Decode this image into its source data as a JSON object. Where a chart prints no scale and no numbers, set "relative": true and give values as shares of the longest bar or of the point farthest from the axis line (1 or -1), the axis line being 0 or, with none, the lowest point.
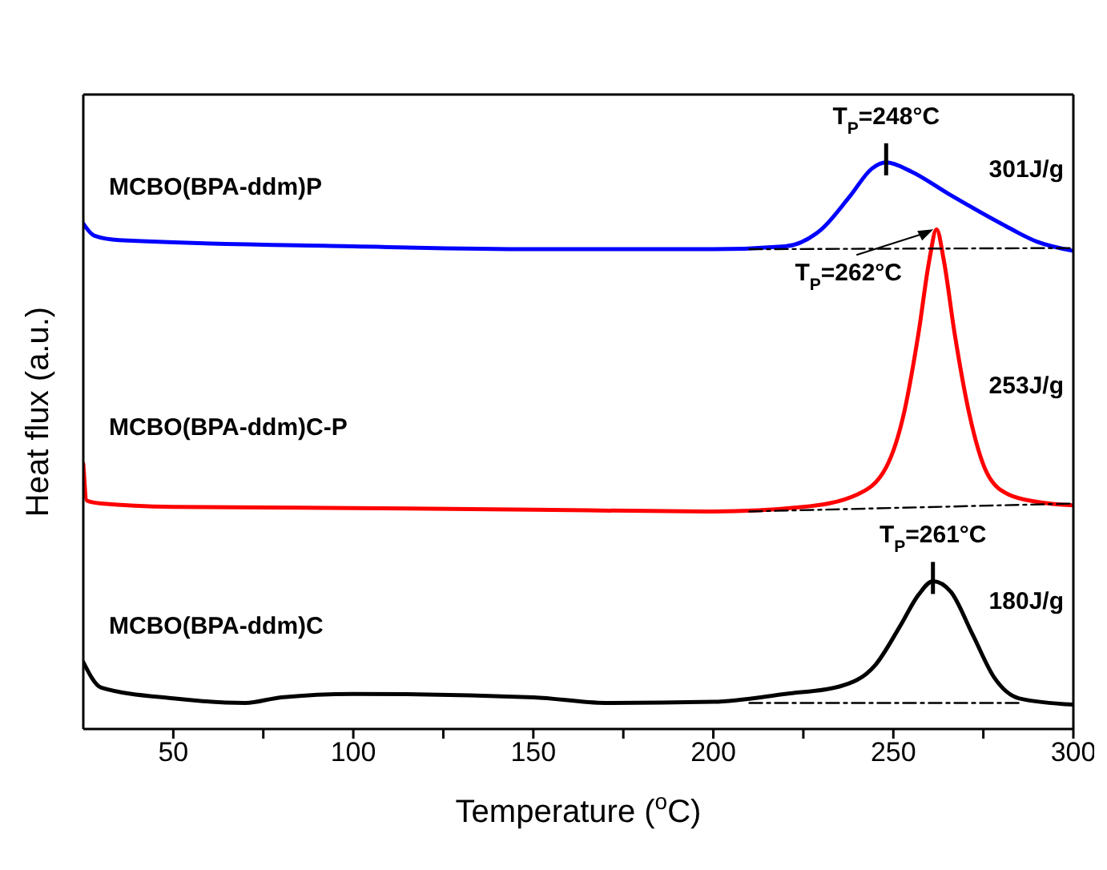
{
  "chart_data": {
    "type": "line",
    "relative": true,
    "xlabel": "Temperature ($^{o}$C)",
    "ylabel": "Heat flux (a.u.)",
    "xlim": [
      25,
      300
    ],
    "xticks": [
      50,
      {
        "value": 75,
        "label": null
      },
      100,
      {
        "value": 125,
        "label": null
      },
      150,
      {
        "value": 175,
        "label": null
      },
      200,
      {
        "value": 225,
        "label": null
      },
      250,
      {
        "value": 275,
        "label": null
      },
      300
    ],
    "marker": "none",
    "line_style": "solid",
    "series": [
      {
        "name": "MCBO(BPA-ddm)P",
        "color": "#0000ff",
        "x": [
          25,
          28,
          35,
          100,
          150,
          200,
          220,
          230,
          238,
          244,
          248,
          255,
          265,
          280,
          290,
          300
        ],
        "values": [
          0.892,
          0.871,
          0.863,
          0.852,
          0.847,
          0.847,
          0.852,
          0.882,
          0.941,
          0.989,
          1,
          0.984,
          0.946,
          0.892,
          0.86,
          0.844
        ]
      },
      {
        "name": "MCBO(BPA-ddm)C-P",
        "color": "#ff0000",
        "x": [
          25,
          26,
          30,
          50,
          100,
          150,
          200,
          225,
          240,
          248,
          253,
          257,
          260,
          262,
          264,
          267,
          271,
          276,
          282,
          290,
          300
        ],
        "values": [
          0.468,
          0.403,
          0.398,
          0.392,
          0.39,
          0.387,
          0.384,
          0.392,
          0.414,
          0.462,
          0.559,
          0.699,
          0.828,
          0.882,
          0.828,
          0.699,
          0.559,
          0.452,
          0.414,
          0.401,
          0.395
        ]
      },
      {
        "name": "MCBO(BPA-ddm)C",
        "color": "#000000",
        "x": [
          25,
          30,
          50,
          70,
          80,
          100,
          150,
          170,
          200,
          220,
          235,
          245,
          252,
          257,
          261,
          266,
          272,
          278,
          285,
          300
        ],
        "values": [
          0.118,
          0.073,
          0.054,
          0.046,
          0.056,
          0.062,
          0.056,
          0.046,
          0.048,
          0.062,
          0.075,
          0.113,
          0.183,
          0.237,
          0.261,
          0.242,
          0.167,
          0.091,
          0.054,
          0.043
        ]
      },
      {
        "type": "line",
        "line_style": "dashed",
        "color": "#000000",
        "x": [
          210,
          300
        ],
        "values": [
          0.847,
          0.849
        ]
      },
      {
        "type": "line",
        "line_style": "dashed",
        "color": "#000000",
        "x": [
          210,
          300
        ],
        "values": [
          0.384,
          0.398
        ]
      },
      {
        "type": "line",
        "line_style": "dashed",
        "color": "#000000",
        "x": [
          210,
          285
        ],
        "values": [
          0.046,
          0.046
        ]
      }
    ],
    "annotations": [
      {
        "text": "T$_{P}$=248°C",
        "x": 248,
        "y": 1
      },
      {
        "text": "T$_{P}$=262°C",
        "x": 262,
        "y": 0.882
      },
      {
        "text": "T$_{P}$=261°C",
        "x": 261,
        "y": 0.261
      },
      "301J/g",
      "253J/g",
      "180J/g"
    ]
  }
}
